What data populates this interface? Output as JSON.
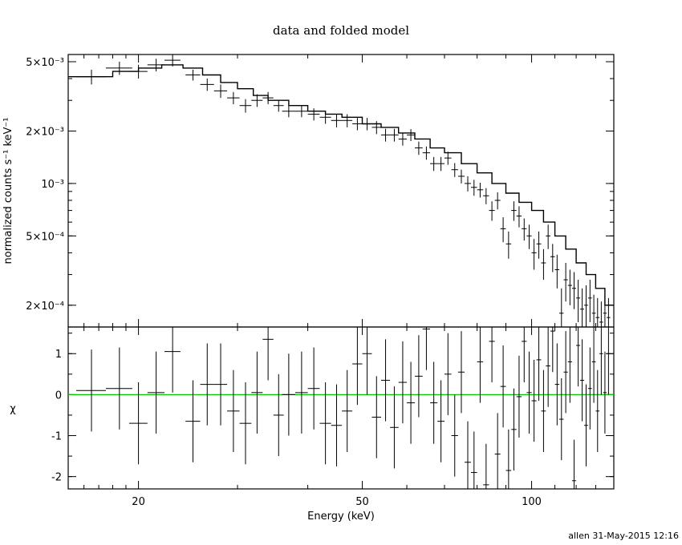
{
  "chart_data": [
    {
      "type": "scatter",
      "title": "data and folded model",
      "xlabel": "",
      "ylabel": "normalized counts s⁻¹ keV⁻¹",
      "xscale": "log",
      "yscale": "log",
      "xlim": [
        15,
        140
      ],
      "ylim": [
        0.00015,
        0.0055
      ],
      "y_ticks": [
        {
          "value": 0.005,
          "label": "5×10⁻³"
        },
        {
          "value": 0.002,
          "label": "2×10⁻³"
        },
        {
          "value": 0.001,
          "label": "10⁻³"
        },
        {
          "value": 0.0005,
          "label": "5×10⁻⁴"
        },
        {
          "value": 0.0002,
          "label": "2×10⁻⁴"
        }
      ],
      "series": [
        {
          "style": "crosses",
          "x": [
            16.5,
            18.5,
            20,
            21.5,
            23,
            25,
            26.5,
            28,
            29.5,
            31,
            32.5,
            34,
            35.5,
            37,
            39,
            41,
            43,
            45,
            47,
            49,
            51,
            53,
            55,
            57,
            59,
            61,
            63,
            65,
            67,
            69,
            71,
            73,
            75,
            77,
            79,
            81,
            83,
            85,
            87,
            89,
            91,
            93,
            95,
            97,
            99,
            101,
            103,
            105,
            107,
            109,
            111,
            113,
            115,
            117,
            119,
            121,
            123,
            125,
            127,
            129,
            131,
            133,
            135,
            137
          ],
          "xerr": [
            1,
            1,
            0.75,
            0.75,
            0.75,
            0.75,
            0.75,
            0.75,
            0.75,
            0.75,
            0.75,
            0.75,
            0.75,
            1,
            1,
            1,
            1,
            1,
            1,
            1,
            1,
            1,
            1,
            1,
            1,
            1,
            1,
            1,
            1,
            1,
            1,
            1,
            1,
            1,
            1,
            1,
            1,
            1,
            1,
            1,
            1,
            1,
            1,
            1,
            1,
            1,
            1,
            1,
            1,
            1,
            1,
            1,
            1,
            1,
            1,
            1,
            1,
            1,
            1,
            1,
            1,
            1,
            1,
            1
          ],
          "y": [
            0.0041,
            0.0046,
            0.0044,
            0.0048,
            0.0051,
            0.0042,
            0.0037,
            0.0034,
            0.0031,
            0.0028,
            0.003,
            0.0031,
            0.0028,
            0.0026,
            0.0026,
            0.0025,
            0.0024,
            0.0023,
            0.0023,
            0.0022,
            0.0022,
            0.0021,
            0.0019,
            0.0019,
            0.0018,
            0.0019,
            0.0016,
            0.0015,
            0.0013,
            0.0013,
            0.0014,
            0.0012,
            0.0011,
            0.001,
            0.00095,
            0.00092,
            0.00085,
            0.0007,
            0.0008,
            0.00055,
            0.00045,
            0.0007,
            0.00065,
            0.00055,
            0.0005,
            0.0004,
            0.00045,
            0.00035,
            0.0005,
            0.00038,
            0.00032,
            0.00018,
            0.00028,
            0.00026,
            0.00025,
            0.00022,
            0.00019,
            0.0002,
            0.00022,
            0.00018,
            0.00017,
            0.00016,
            0.00018,
            0.00017
          ],
          "yerr": [
            0.0004,
            0.0004,
            0.0004,
            0.0004,
            0.0004,
            0.0003,
            0.0003,
            0.0003,
            0.00025,
            0.00025,
            0.00025,
            0.00025,
            0.00022,
            0.0002,
            0.0002,
            0.0002,
            0.0002,
            0.0002,
            0.0002,
            0.00018,
            0.00018,
            0.00018,
            0.00016,
            0.00016,
            0.00015,
            0.00015,
            0.00014,
            0.00013,
            0.00012,
            0.00012,
            0.00012,
            0.00011,
            0.0001,
            0.0001,
            0.0001,
            9e-05,
            9e-05,
            9e-05,
            9e-05,
            9e-05,
            8e-05,
            9e-05,
            9e-05,
            8e-05,
            8e-05,
            8e-05,
            8e-05,
            7e-05,
            8e-05,
            7e-05,
            7e-05,
            7e-05,
            7e-05,
            6e-05,
            6e-05,
            6e-05,
            6e-05,
            6e-05,
            6e-05,
            5e-05,
            5e-05,
            5e-05,
            5e-05,
            5e-05
          ]
        },
        {
          "style": "step",
          "x": [
            15,
            18,
            20,
            22,
            24,
            26,
            28,
            30,
            32,
            34,
            37,
            40,
            43,
            46,
            50,
            54,
            58,
            62,
            66,
            70,
            75,
            80,
            85,
            90,
            95,
            100,
            105,
            110,
            115,
            120,
            125,
            130,
            135,
            140
          ],
          "y": [
            0.0041,
            0.0044,
            0.0046,
            0.0048,
            0.0046,
            0.0042,
            0.0038,
            0.0035,
            0.0032,
            0.003,
            0.0028,
            0.0026,
            0.0025,
            0.0024,
            0.0022,
            0.0021,
            0.00195,
            0.0018,
            0.0016,
            0.0015,
            0.0013,
            0.00115,
            0.001,
            0.00088,
            0.00078,
            0.0007,
            0.0006,
            0.0005,
            0.00042,
            0.00035,
            0.0003,
            0.00025,
            0.0002,
            0.00017
          ]
        }
      ]
    },
    {
      "type": "scatter",
      "xlabel": "Energy (keV)",
      "ylabel": "χ",
      "xscale": "log",
      "xlim": [
        15,
        140
      ],
      "ylim": [
        -2.3,
        1.65
      ],
      "x_ticks": [
        20,
        50,
        100
      ],
      "y_ticks": [
        -2,
        -1,
        0,
        1
      ],
      "zero_line_color": "#00cc00",
      "series": [
        {
          "style": "crosses",
          "x": [
            16.5,
            18.5,
            20,
            21.5,
            23,
            25,
            26.5,
            28,
            29.5,
            31,
            32.5,
            34,
            35.5,
            37,
            39,
            41,
            43,
            45,
            47,
            49,
            51,
            53,
            55,
            57,
            59,
            61,
            63,
            65,
            67,
            69,
            71,
            73,
            75,
            77,
            79,
            81,
            83,
            85,
            87,
            89,
            91,
            93,
            95,
            97,
            99,
            101,
            103,
            105,
            107,
            109,
            111,
            113,
            115,
            117,
            119,
            121,
            123,
            125,
            127,
            129,
            131,
            133,
            135,
            137
          ],
          "y": [
            0.1,
            0.15,
            -0.7,
            0.05,
            1.05,
            -0.65,
            0.25,
            0.25,
            -0.4,
            -0.7,
            0.05,
            1.35,
            -0.5,
            0.0,
            0.05,
            0.15,
            -0.7,
            -0.75,
            -0.4,
            0.75,
            1.0,
            -0.55,
            0.35,
            -0.8,
            0.3,
            -0.2,
            0.45,
            1.6,
            -0.2,
            -0.65,
            0.5,
            -1.0,
            0.55,
            -1.65,
            -1.9,
            0.8,
            -2.2,
            1.3,
            -1.45,
            0.2,
            -1.85,
            -0.85,
            -0.05,
            1.3,
            0.05,
            -0.15,
            0.85,
            -0.4,
            0.7,
            1.55,
            0.25,
            -0.6,
            0.55,
            0.8,
            -2.1,
            1.2,
            0.35,
            -0.75,
            0.15,
            0.8,
            -0.4,
            1.0,
            0.05,
            1.0
          ],
          "yerr": [
            1,
            1,
            1,
            1,
            1,
            1,
            1,
            1,
            1,
            1,
            1,
            1,
            1,
            1,
            1,
            1,
            1,
            1,
            1,
            1,
            1,
            1,
            1,
            1,
            1,
            1,
            1,
            1,
            1,
            1,
            1,
            1,
            1,
            1,
            1,
            1,
            1,
            1,
            1,
            1,
            1,
            1,
            1,
            1,
            1,
            1,
            1,
            1,
            1,
            1,
            1,
            1,
            1,
            1,
            1,
            1,
            1,
            1,
            1,
            1,
            1,
            1,
            1,
            1
          ]
        }
      ]
    }
  ],
  "footer": "allen 31-May-2015 12:16"
}
